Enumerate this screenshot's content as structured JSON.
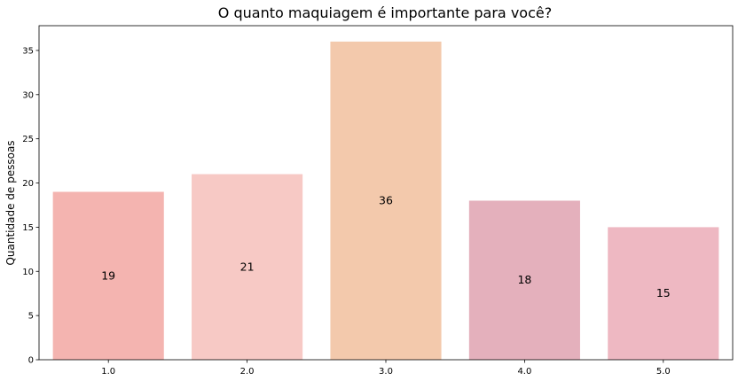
{
  "chart_data": {
    "type": "bar",
    "title": "O quanto maquiagem é importante para você?",
    "xlabel": "",
    "ylabel": "Quantidade de pessoas",
    "categories": [
      "1.0",
      "2.0",
      "3.0",
      "4.0",
      "5.0"
    ],
    "values": [
      19,
      21,
      36,
      18,
      15
    ],
    "data_labels": [
      "19",
      "21",
      "36",
      "18",
      "15"
    ],
    "colors": [
      "#f4b4b0",
      "#f7c9c5",
      "#f3c9ac",
      "#e4b0bc",
      "#eeb8c2"
    ],
    "ylim": [
      0,
      37.8
    ],
    "yticks": [
      0,
      5,
      10,
      15,
      20,
      25,
      30,
      35
    ],
    "grid": false,
    "legend": "none"
  }
}
